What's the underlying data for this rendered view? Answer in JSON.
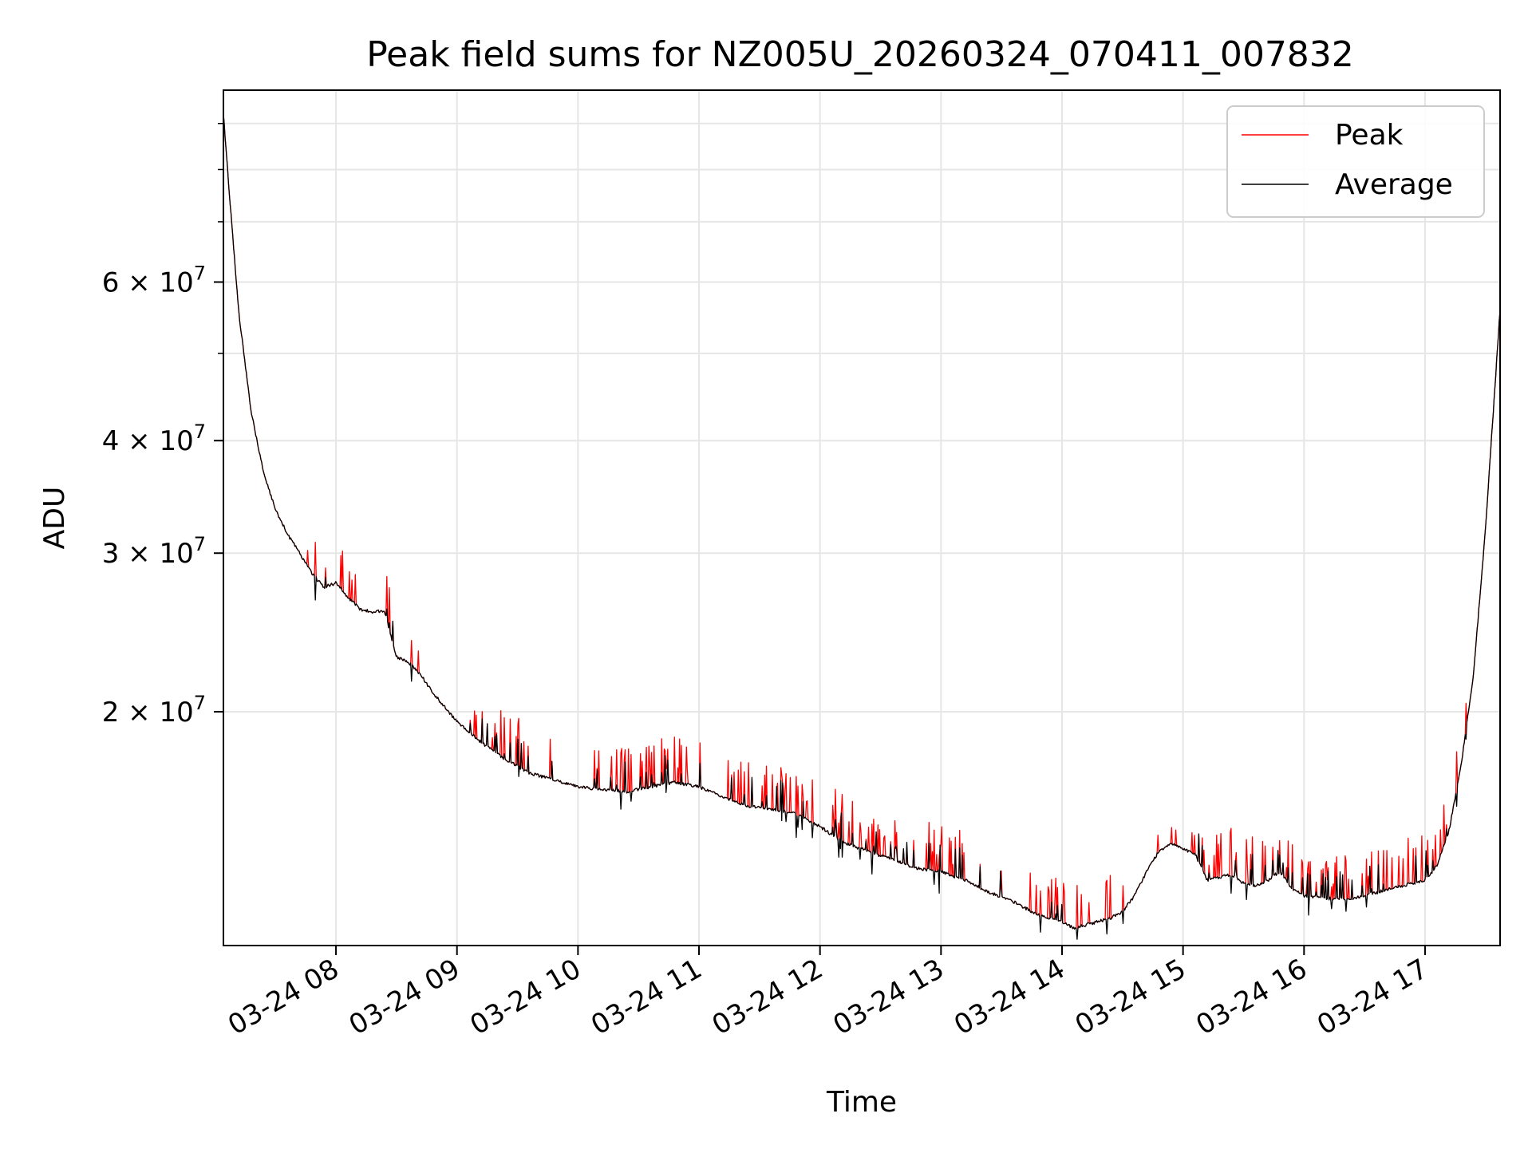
{
  "chart_data": {
    "type": "line",
    "title": "Peak field sums for NZ005U_20260324_070411_007832",
    "xlabel": "Time",
    "ylabel": "ADU",
    "y_scale": "log",
    "x_range_hours": [
      7.07,
      17.62
    ],
    "ylim": [
      11000000,
      98000000
    ],
    "x_ticks": [
      {
        "value": 8,
        "label": "03-24 08"
      },
      {
        "value": 9,
        "label": "03-24 09"
      },
      {
        "value": 10,
        "label": "03-24 10"
      },
      {
        "value": 11,
        "label": "03-24 11"
      },
      {
        "value": 12,
        "label": "03-24 12"
      },
      {
        "value": 13,
        "label": "03-24 13"
      },
      {
        "value": 14,
        "label": "03-24 14"
      },
      {
        "value": 15,
        "label": "03-24 15"
      },
      {
        "value": 16,
        "label": "03-24 16"
      },
      {
        "value": 17,
        "label": "03-24 17"
      }
    ],
    "y_major_ticks": [
      {
        "value": 20000000,
        "mantissa": "2",
        "exponent": "7"
      },
      {
        "value": 30000000,
        "mantissa": "3",
        "exponent": "7"
      },
      {
        "value": 40000000,
        "mantissa": "4",
        "exponent": "7"
      },
      {
        "value": 60000000,
        "mantissa": "6",
        "exponent": "7"
      }
    ],
    "y_minor_ticks": [
      50000000,
      70000000,
      80000000,
      90000000
    ],
    "grid": true,
    "legend_position": "top-right",
    "series": [
      {
        "name": "Peak",
        "color": "#ff0000"
      },
      {
        "name": "Average",
        "color": "#000000"
      }
    ],
    "average_curve": [
      [
        7.07,
        92000000
      ],
      [
        7.12,
        75000000
      ],
      [
        7.2,
        55000000
      ],
      [
        7.3,
        43000000
      ],
      [
        7.4,
        37000000
      ],
      [
        7.5,
        33500000
      ],
      [
        7.6,
        31500000
      ],
      [
        7.7,
        30000000
      ],
      [
        7.8,
        28500000
      ],
      [
        7.9,
        27500000
      ],
      [
        8.0,
        27800000
      ],
      [
        8.1,
        26800000
      ],
      [
        8.2,
        26000000
      ],
      [
        8.3,
        25800000
      ],
      [
        8.4,
        25900000
      ],
      [
        8.5,
        23000000
      ],
      [
        8.6,
        22700000
      ],
      [
        8.7,
        22000000
      ],
      [
        8.8,
        21000000
      ],
      [
        9.0,
        19500000
      ],
      [
        9.2,
        18500000
      ],
      [
        9.4,
        17700000
      ],
      [
        9.6,
        17100000
      ],
      [
        9.8,
        16800000
      ],
      [
        10.0,
        16500000
      ],
      [
        10.2,
        16400000
      ],
      [
        10.4,
        16300000
      ],
      [
        10.6,
        16500000
      ],
      [
        10.8,
        16700000
      ],
      [
        11.0,
        16500000
      ],
      [
        11.2,
        16100000
      ],
      [
        11.4,
        15700000
      ],
      [
        11.6,
        15600000
      ],
      [
        11.8,
        15400000
      ],
      [
        12.0,
        14900000
      ],
      [
        12.2,
        14300000
      ],
      [
        12.4,
        14000000
      ],
      [
        12.6,
        13700000
      ],
      [
        12.8,
        13400000
      ],
      [
        13.0,
        13300000
      ],
      [
        13.2,
        13000000
      ],
      [
        13.4,
        12600000
      ],
      [
        13.6,
        12300000
      ],
      [
        13.8,
        11900000
      ],
      [
        14.0,
        11700000
      ],
      [
        14.1,
        11500000
      ],
      [
        14.2,
        11600000
      ],
      [
        14.3,
        11700000
      ],
      [
        14.4,
        11800000
      ],
      [
        14.5,
        12000000
      ],
      [
        14.6,
        12500000
      ],
      [
        14.7,
        13300000
      ],
      [
        14.8,
        14000000
      ],
      [
        14.9,
        14300000
      ],
      [
        15.0,
        14100000
      ],
      [
        15.1,
        13900000
      ],
      [
        15.2,
        13000000
      ],
      [
        15.3,
        13100000
      ],
      [
        15.4,
        13200000
      ],
      [
        15.5,
        12900000
      ],
      [
        15.6,
        12800000
      ],
      [
        15.7,
        13000000
      ],
      [
        15.8,
        13300000
      ],
      [
        15.9,
        12700000
      ],
      [
        16.0,
        12500000
      ],
      [
        16.2,
        12400000
      ],
      [
        16.4,
        12400000
      ],
      [
        16.6,
        12600000
      ],
      [
        16.8,
        12800000
      ],
      [
        17.0,
        13000000
      ],
      [
        17.1,
        13500000
      ],
      [
        17.2,
        14800000
      ],
      [
        17.3,
        17500000
      ],
      [
        17.4,
        22000000
      ],
      [
        17.5,
        32000000
      ],
      [
        17.62,
        56000000
      ]
    ]
  }
}
